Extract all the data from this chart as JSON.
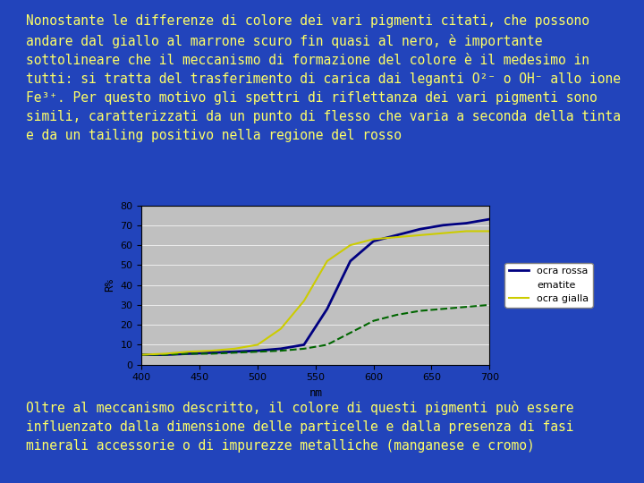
{
  "background_color": "#2244bb",
  "text_color": "#ffff66",
  "text_top": "Nonostante le differenze di colore dei vari pigmenti citati, che possono\nandare dal giallo al marrone scuro fin quasi al nero, è importante\nsottolineare che il meccanismo di formazione del colore è il medesimo in\ntutti: si tratta del trasferimento di carica dai leganti O²⁻ o OH⁻ allo ione\nFe³⁺. Per questo motivo gli spettri di riflettanza dei vari pigmenti sono\nsimili, caratterizzati da un punto di flesso che varia a seconda della tinta\ne da un tailing positivo nella regione del rosso",
  "text_bottom": "Oltre al meccanismo descritto, il colore di questi pigmenti può essere\ninfluenzato dalla dimensione delle particelle e dalla presenza di fasi\nminerali accessorie o di impurezze metalliche (manganese e cromo)",
  "font_family": "monospace",
  "font_size_text": 10.5,
  "chart_bg": "#c0c0c0",
  "chart_frame_color": "#ffffff",
  "xlabel": "nm",
  "ylabel": "R%",
  "xlim": [
    400,
    700
  ],
  "ylim": [
    0,
    80
  ],
  "xticks": [
    400,
    450,
    500,
    550,
    600,
    650,
    700
  ],
  "yticks": [
    0,
    10,
    20,
    30,
    40,
    50,
    60,
    70,
    80
  ],
  "series": {
    "ocra rossa": {
      "color": "#000080",
      "linestyle": "solid",
      "linewidth": 2.0,
      "x": [
        400,
        420,
        440,
        460,
        480,
        500,
        520,
        540,
        560,
        580,
        600,
        620,
        640,
        660,
        680,
        700
      ],
      "y": [
        5,
        5,
        5.5,
        6,
        6.5,
        7,
        8,
        10,
        28,
        52,
        62,
        65,
        68,
        70,
        71,
        73
      ]
    },
    "ematite": {
      "color": "#006600",
      "linestyle": "dashed",
      "linewidth": 1.5,
      "x": [
        400,
        420,
        440,
        460,
        480,
        500,
        520,
        540,
        560,
        580,
        600,
        620,
        640,
        660,
        680,
        700
      ],
      "y": [
        5,
        5,
        5.5,
        5.5,
        6,
        6.5,
        7,
        8,
        10,
        16,
        22,
        25,
        27,
        28,
        29,
        30
      ]
    },
    "ocra gialla": {
      "color": "#cccc00",
      "linestyle": "solid",
      "linewidth": 1.5,
      "x": [
        400,
        420,
        440,
        460,
        480,
        500,
        520,
        540,
        560,
        580,
        600,
        620,
        640,
        660,
        680,
        700
      ],
      "y": [
        5,
        5.5,
        6.5,
        7,
        8,
        10,
        18,
        32,
        52,
        60,
        63,
        64,
        65,
        66,
        67,
        67
      ]
    }
  }
}
